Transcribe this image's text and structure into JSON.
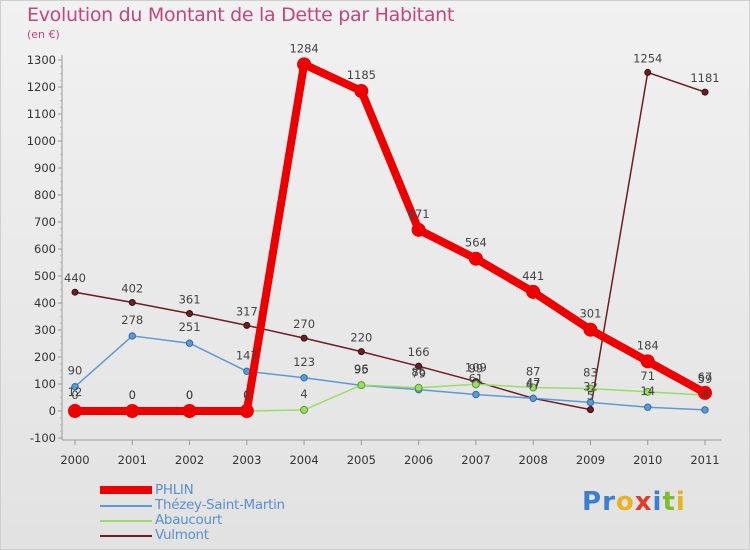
{
  "title": "Evolution du Montant de la Dette par Habitant",
  "unit_label": "(en €)",
  "brand": {
    "letters": [
      "P",
      "r",
      "o",
      "x",
      "i",
      "t",
      "i"
    ],
    "colors": [
      "#3b7fd0",
      "#3b7fd0",
      "#e8b221",
      "#e23a2c",
      "#3b7fd0",
      "#7cbd2f",
      "#e8b221"
    ]
  },
  "chart_data": {
    "type": "line",
    "title": "Evolution du Montant de la Dette par Habitant",
    "ylabel": "(en €)",
    "xlabel": "",
    "x": [
      "2000",
      "2001",
      "2002",
      "2003",
      "2004",
      "2005",
      "2006",
      "2007",
      "2008",
      "2009",
      "2010",
      "2011"
    ],
    "ylim": [
      -100,
      1300
    ],
    "yticks": [
      "-100",
      "0",
      "100",
      "200",
      "300",
      "400",
      "500",
      "600",
      "700",
      "800",
      "900",
      "1000",
      "1100",
      "1200",
      "1300"
    ],
    "grid": false,
    "legend_position": "bottom-left",
    "series": [
      {
        "name": "PHLIN",
        "color": "#ee0000",
        "values": [
          0,
          0,
          0,
          0,
          1284,
          1185,
          671,
          564,
          441,
          301,
          184,
          67
        ],
        "labels": [
          "0",
          "0",
          "0",
          "0",
          "1284",
          "1185",
          "671",
          "564",
          "441",
          "301",
          "184",
          "67"
        ]
      },
      {
        "name": "Thézey-Saint-Martin",
        "color": "#5b9ad4",
        "values": [
          90,
          278,
          251,
          147,
          123,
          95,
          79,
          61,
          47,
          32,
          14,
          4
        ],
        "labels": [
          "90",
          "278",
          "251",
          "147",
          "123",
          "95",
          "79",
          "61",
          "47",
          "32",
          "14",
          "4"
        ]
      },
      {
        "name": "Abaucourt",
        "color": "#99dd66",
        "values": [
          12,
          0,
          0,
          0,
          4,
          96,
          86,
          99,
          87,
          83,
          71,
          59
        ],
        "labels": [
          "12",
          "0",
          "0",
          "0",
          "4",
          "96",
          "86",
          "99",
          "87",
          "83",
          "71",
          "59"
        ]
      },
      {
        "name": "Vulmont",
        "color": "#6b1f24",
        "values": [
          440,
          402,
          361,
          317,
          270,
          220,
          166,
          109,
          47,
          5,
          1254,
          1181
        ],
        "labels": [
          "440",
          "402",
          "361",
          "317",
          "270",
          "220",
          "166",
          "109",
          "47",
          "5",
          "1254",
          "1181"
        ]
      }
    ]
  }
}
